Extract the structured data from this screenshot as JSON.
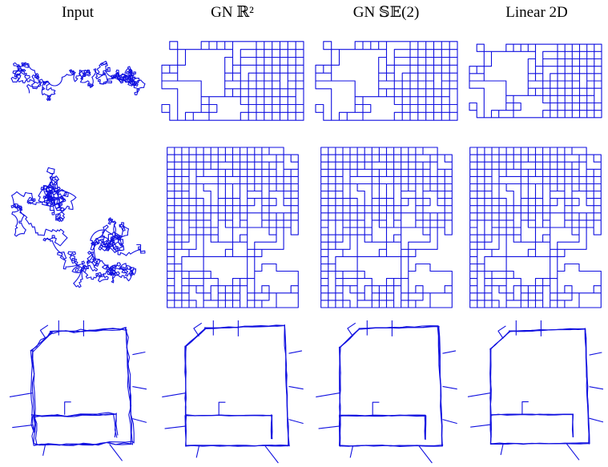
{
  "columns": [
    "Input",
    "GN ℝ²",
    "GN 𝕊𝔼(2)",
    "Linear 2D"
  ]
}
